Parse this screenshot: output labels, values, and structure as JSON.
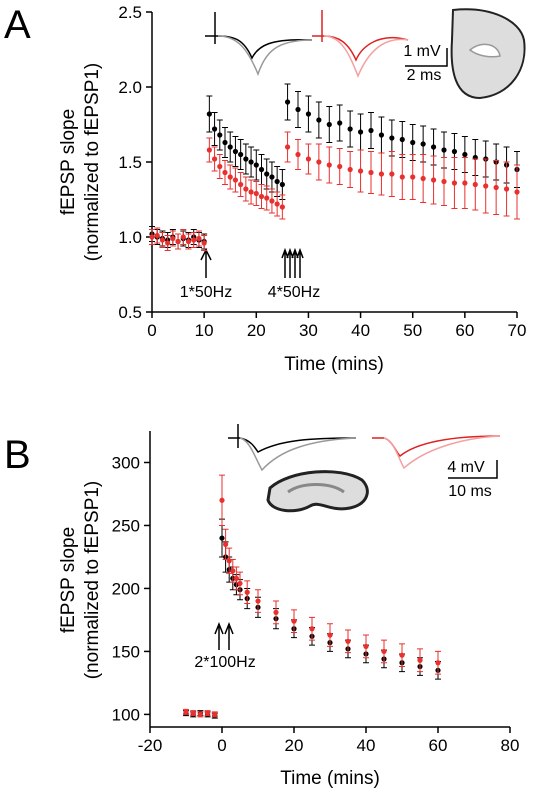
{
  "chart_data": [
    {
      "type": "scatter",
      "panel": "A",
      "ylabel": [
        "fEPSP slope",
        "(normalized to fEPSP1)"
      ],
      "xlabel": "Time (mins)",
      "xlim": [
        0,
        70
      ],
      "ylim": [
        0.5,
        2.5
      ],
      "xticks": [
        0,
        10,
        20,
        30,
        40,
        50,
        60,
        70
      ],
      "yticks": [
        0.5,
        {
          "value": 1,
          "label": "1.0"
        },
        1.5,
        {
          "value": 2,
          "label": "2.0"
        },
        2.5
      ],
      "annotations": [
        "1*50Hz",
        "4*50Hz"
      ],
      "scale_bar": [
        "1 mV",
        "2 ms"
      ],
      "x": [
        0,
        1,
        2,
        3,
        4,
        5,
        6,
        7,
        8,
        9,
        10,
        11,
        12,
        13,
        14,
        15,
        16,
        17,
        18,
        19,
        20,
        21,
        22,
        23,
        24,
        25,
        26,
        28,
        30,
        32,
        34,
        36,
        38,
        40,
        42,
        44,
        46,
        48,
        50,
        52,
        54,
        56,
        58,
        60,
        62,
        64,
        66,
        68,
        70
      ],
      "series": [
        {
          "color": "#000000",
          "values": [
            1.02,
            1.0,
            0.99,
            0.98,
            1.0,
            0.97,
            0.99,
            0.98,
            1.0,
            0.98,
            0.97,
            1.82,
            1.72,
            1.68,
            1.63,
            1.6,
            1.57,
            1.55,
            1.52,
            1.5,
            1.48,
            1.45,
            1.42,
            1.4,
            1.37,
            1.35,
            1.9,
            1.85,
            1.82,
            1.78,
            1.75,
            1.76,
            1.72,
            1.7,
            1.71,
            1.68,
            1.66,
            1.65,
            1.63,
            1.62,
            1.6,
            1.58,
            1.57,
            1.55,
            1.53,
            1.52,
            1.5,
            1.48,
            1.45
          ],
          "errors": [
            0.05,
            0.05,
            0.05,
            0.05,
            0.05,
            0.05,
            0.05,
            0.05,
            0.05,
            0.05,
            0.05,
            0.12,
            0.11,
            0.1,
            0.1,
            0.1,
            0.1,
            0.1,
            0.1,
            0.1,
            0.1,
            0.1,
            0.1,
            0.1,
            0.1,
            0.1,
            0.12,
            0.12,
            0.12,
            0.12,
            0.12,
            0.12,
            0.12,
            0.12,
            0.12,
            0.12,
            0.12,
            0.12,
            0.12,
            0.12,
            0.12,
            0.12,
            0.12,
            0.12,
            0.12,
            0.12,
            0.12,
            0.12,
            0.12
          ]
        },
        {
          "color": "#e8302f",
          "values": [
            1.0,
            1.01,
            0.98,
            0.96,
            0.99,
            0.97,
            1.0,
            0.97,
            0.98,
            0.99,
            0.96,
            1.58,
            1.52,
            1.47,
            1.43,
            1.4,
            1.38,
            1.35,
            1.32,
            1.3,
            1.29,
            1.27,
            1.26,
            1.24,
            1.22,
            1.2,
            1.6,
            1.55,
            1.52,
            1.5,
            1.48,
            1.47,
            1.45,
            1.44,
            1.43,
            1.42,
            1.42,
            1.4,
            1.4,
            1.39,
            1.38,
            1.37,
            1.36,
            1.36,
            1.35,
            1.34,
            1.33,
            1.32,
            1.3
          ],
          "errors": [
            0.05,
            0.05,
            0.05,
            0.05,
            0.05,
            0.05,
            0.05,
            0.05,
            0.05,
            0.05,
            0.05,
            0.08,
            0.08,
            0.08,
            0.08,
            0.08,
            0.08,
            0.08,
            0.08,
            0.08,
            0.08,
            0.08,
            0.08,
            0.08,
            0.08,
            0.08,
            0.1,
            0.1,
            0.1,
            0.12,
            0.12,
            0.12,
            0.12,
            0.14,
            0.14,
            0.14,
            0.15,
            0.15,
            0.15,
            0.16,
            0.16,
            0.16,
            0.17,
            0.17,
            0.17,
            0.18,
            0.18,
            0.18,
            0.18
          ]
        }
      ]
    },
    {
      "type": "scatter",
      "panel": "B",
      "ylabel": [
        "fEPSP slope",
        "(normalized to fEPSP1)"
      ],
      "xlabel": "Time (mins)",
      "xlim": [
        -20,
        80
      ],
      "ylim": [
        90,
        325
      ],
      "xticks": [
        -20,
        0,
        20,
        40,
        60,
        80
      ],
      "yticks": [
        100,
        150,
        200,
        250,
        300
      ],
      "annotations": [
        "2*100Hz"
      ],
      "scale_bar": [
        "4 mV",
        "10 ms"
      ],
      "x": [
        -10,
        -8,
        -6,
        -4,
        -2,
        0,
        1,
        2,
        3,
        4,
        5,
        7,
        10,
        15,
        20,
        25,
        30,
        35,
        40,
        45,
        50,
        55,
        60
      ],
      "series": [
        {
          "color": "#000000",
          "values": [
            101,
            100,
            101,
            100,
            99,
            240,
            225,
            215,
            208,
            203,
            199,
            192,
            185,
            176,
            168,
            162,
            157,
            152,
            148,
            144,
            141,
            138,
            135
          ],
          "errors": [
            2,
            2,
            2,
            2,
            2,
            15,
            12,
            10,
            9,
            8,
            8,
            8,
            8,
            8,
            7,
            7,
            7,
            7,
            7,
            7,
            7,
            7,
            7
          ]
        },
        {
          "color": "#e8302f",
          "values": [
            102,
            101,
            100,
            101,
            100,
            270,
            235,
            222,
            214,
            208,
            204,
            197,
            190,
            181,
            174,
            168,
            163,
            158,
            154,
            150,
            147,
            143,
            141
          ],
          "errors": [
            2,
            2,
            2,
            2,
            2,
            20,
            12,
            10,
            9,
            9,
            9,
            9,
            9,
            9,
            9,
            9,
            9,
            9,
            9,
            9,
            9,
            9,
            9
          ]
        }
      ]
    }
  ]
}
